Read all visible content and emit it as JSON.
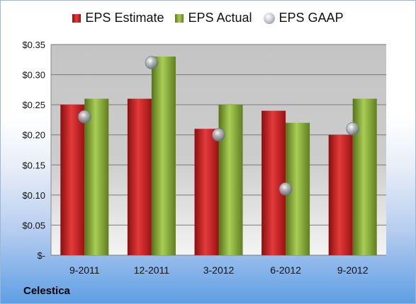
{
  "brand": "Celestica",
  "legend": [
    {
      "label": "EPS Estimate",
      "icon": "square-swatch",
      "color": "#c21f1f"
    },
    {
      "label": "EPS Actual",
      "icon": "square-swatch",
      "color": "#8db33a"
    },
    {
      "label": "EPS GAAP",
      "icon": "sphere-swatch",
      "color": "#a9afb8"
    }
  ],
  "chart_data": {
    "type": "bar",
    "title": "",
    "xlabel": "",
    "ylabel": "",
    "categories": [
      "9-2011",
      "12-2011",
      "3-2012",
      "6-2012",
      "9-2012"
    ],
    "series": [
      {
        "name": "EPS Estimate",
        "type": "bar",
        "color": "#c21f1f",
        "values": [
          0.25,
          0.26,
          0.21,
          0.24,
          0.2
        ]
      },
      {
        "name": "EPS Actual",
        "type": "bar",
        "color": "#8db33a",
        "values": [
          0.26,
          0.33,
          0.25,
          0.22,
          0.26
        ]
      },
      {
        "name": "EPS GAAP",
        "type": "scatter",
        "color": "#a9afb8",
        "values": [
          0.23,
          0.32,
          0.2,
          0.11,
          0.21
        ]
      }
    ],
    "ylim": [
      0,
      0.35
    ],
    "yticks": [
      0,
      0.05,
      0.1,
      0.15,
      0.2,
      0.25,
      0.3,
      0.35
    ],
    "ytick_labels": [
      "$-",
      "$0.05",
      "$0.10",
      "$0.15",
      "$0.20",
      "$0.25",
      "$0.30",
      "$0.35"
    ],
    "grid": true,
    "legend_position": "top"
  }
}
